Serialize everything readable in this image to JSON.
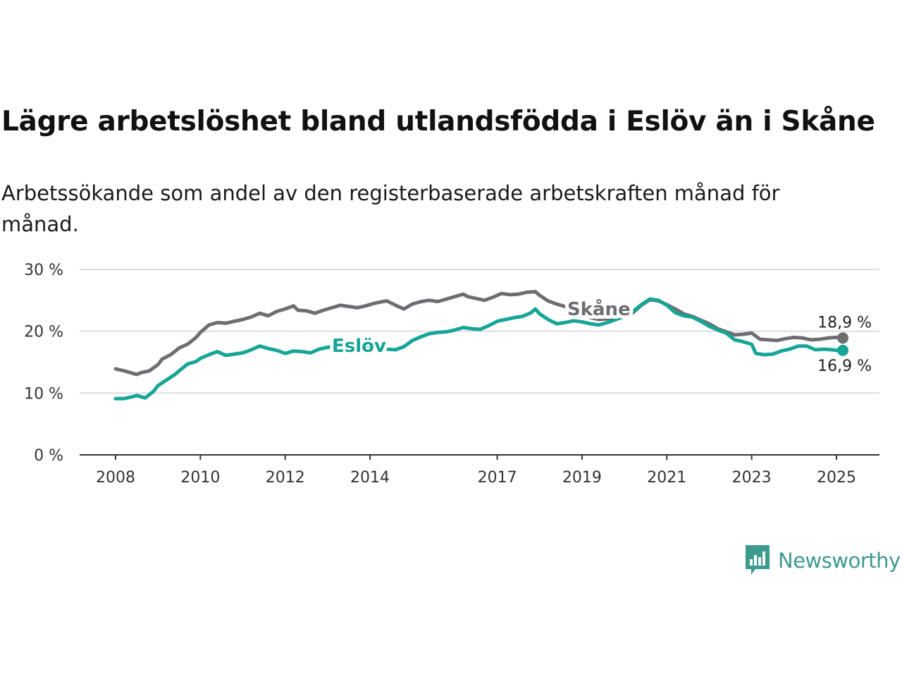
{
  "chart_data": {
    "type": "line",
    "title": "Lägre arbetslöshet bland utlandsfödda i Eslöv än i Skåne",
    "subtitle": "Arbetssökande som andel av den registerbaserade arbetskraften månad för månad.",
    "xlabel": "",
    "ylabel": "",
    "xlim": [
      2008,
      2025.2
    ],
    "ylim": [
      0,
      30
    ],
    "y_ticks": [
      0,
      10,
      20,
      30
    ],
    "y_tick_labels": [
      "0 %",
      "10 %",
      "20 %",
      "30 %"
    ],
    "x_ticks": [
      2008,
      2010,
      2012,
      2014,
      2017,
      2019,
      2021,
      2023,
      2025
    ],
    "x_tick_labels": [
      "2008",
      "2010",
      "2012",
      "2014",
      "2017",
      "2019",
      "2021",
      "2023",
      "2025"
    ],
    "grid": true,
    "legend": "direct labels on lines",
    "series": [
      {
        "name": "Skåne",
        "color": "#6e6e72",
        "end_label": "18,9 %",
        "points": [
          [
            2008.0,
            13.9
          ],
          [
            2008.2,
            13.6
          ],
          [
            2008.4,
            13.2
          ],
          [
            2008.5,
            13.0
          ],
          [
            2008.6,
            13.3
          ],
          [
            2008.8,
            13.6
          ],
          [
            2009.0,
            14.6
          ],
          [
            2009.1,
            15.5
          ],
          [
            2009.3,
            16.2
          ],
          [
            2009.5,
            17.3
          ],
          [
            2009.7,
            17.9
          ],
          [
            2009.9,
            19.0
          ],
          [
            2010.0,
            19.8
          ],
          [
            2010.2,
            21.0
          ],
          [
            2010.4,
            21.4
          ],
          [
            2010.6,
            21.3
          ],
          [
            2010.8,
            21.6
          ],
          [
            2011.0,
            21.9
          ],
          [
            2011.2,
            22.3
          ],
          [
            2011.4,
            22.9
          ],
          [
            2011.6,
            22.5
          ],
          [
            2011.8,
            23.2
          ],
          [
            2012.0,
            23.6
          ],
          [
            2012.2,
            24.1
          ],
          [
            2012.3,
            23.4
          ],
          [
            2012.5,
            23.3
          ],
          [
            2012.7,
            22.9
          ],
          [
            2012.9,
            23.4
          ],
          [
            2013.1,
            23.8
          ],
          [
            2013.3,
            24.2
          ],
          [
            2013.5,
            24.0
          ],
          [
            2013.7,
            23.8
          ],
          [
            2013.9,
            24.1
          ],
          [
            2014.1,
            24.5
          ],
          [
            2014.3,
            24.8
          ],
          [
            2014.4,
            24.9
          ],
          [
            2014.6,
            24.2
          ],
          [
            2014.8,
            23.6
          ],
          [
            2015.0,
            24.4
          ],
          [
            2015.2,
            24.8
          ],
          [
            2015.4,
            25.0
          ],
          [
            2015.6,
            24.8
          ],
          [
            2015.8,
            25.2
          ],
          [
            2016.0,
            25.6
          ],
          [
            2016.2,
            26.0
          ],
          [
            2016.3,
            25.6
          ],
          [
            2016.5,
            25.3
          ],
          [
            2016.7,
            25.0
          ],
          [
            2016.9,
            25.5
          ],
          [
            2017.1,
            26.1
          ],
          [
            2017.3,
            25.9
          ],
          [
            2017.5,
            26.0
          ],
          [
            2017.7,
            26.3
          ],
          [
            2017.9,
            26.4
          ],
          [
            2018.0,
            25.8
          ],
          [
            2018.2,
            24.9
          ],
          [
            2018.4,
            24.4
          ],
          [
            2018.6,
            24.0
          ],
          [
            2018.8,
            23.4
          ],
          [
            2019.0,
            22.6
          ],
          [
            2019.2,
            22.2
          ],
          [
            2019.4,
            21.9
          ],
          [
            2019.6,
            22.0
          ],
          [
            2019.8,
            22.3
          ],
          [
            2020.0,
            22.8
          ],
          [
            2020.2,
            23.0
          ],
          [
            2020.4,
            24.2
          ],
          [
            2020.6,
            25.1
          ],
          [
            2020.8,
            24.9
          ],
          [
            2021.0,
            24.3
          ],
          [
            2021.2,
            23.6
          ],
          [
            2021.4,
            22.8
          ],
          [
            2021.6,
            22.4
          ],
          [
            2021.8,
            21.8
          ],
          [
            2022.0,
            21.2
          ],
          [
            2022.2,
            20.4
          ],
          [
            2022.4,
            19.9
          ],
          [
            2022.6,
            19.4
          ],
          [
            2022.8,
            19.5
          ],
          [
            2023.0,
            19.7
          ],
          [
            2023.2,
            18.7
          ],
          [
            2023.4,
            18.6
          ],
          [
            2023.6,
            18.5
          ],
          [
            2023.8,
            18.8
          ],
          [
            2024.0,
            19.0
          ],
          [
            2024.2,
            18.9
          ],
          [
            2024.4,
            18.6
          ],
          [
            2024.6,
            18.7
          ],
          [
            2024.8,
            18.9
          ],
          [
            2025.0,
            19.0
          ],
          [
            2025.15,
            18.9
          ]
        ]
      },
      {
        "name": "Eslöv",
        "color": "#16a596",
        "end_label": "16,9 %",
        "points": [
          [
            2008.0,
            9.1
          ],
          [
            2008.2,
            9.1
          ],
          [
            2008.4,
            9.4
          ],
          [
            2008.5,
            9.6
          ],
          [
            2008.7,
            9.2
          ],
          [
            2008.9,
            10.3
          ],
          [
            2009.0,
            11.2
          ],
          [
            2009.2,
            12.1
          ],
          [
            2009.4,
            13.0
          ],
          [
            2009.5,
            13.6
          ],
          [
            2009.7,
            14.7
          ],
          [
            2009.9,
            15.1
          ],
          [
            2010.0,
            15.6
          ],
          [
            2010.2,
            16.2
          ],
          [
            2010.4,
            16.7
          ],
          [
            2010.6,
            16.1
          ],
          [
            2010.8,
            16.3
          ],
          [
            2011.0,
            16.5
          ],
          [
            2011.2,
            17.0
          ],
          [
            2011.4,
            17.6
          ],
          [
            2011.6,
            17.2
          ],
          [
            2011.8,
            16.9
          ],
          [
            2012.0,
            16.4
          ],
          [
            2012.2,
            16.8
          ],
          [
            2012.4,
            16.7
          ],
          [
            2012.6,
            16.5
          ],
          [
            2012.8,
            17.1
          ],
          [
            2013.0,
            17.4
          ],
          [
            2013.2,
            17.6
          ],
          [
            2013.4,
            18.0
          ],
          [
            2013.6,
            18.3
          ],
          [
            2013.8,
            18.0
          ],
          [
            2014.0,
            17.6
          ],
          [
            2014.2,
            17.3
          ],
          [
            2014.4,
            17.1
          ],
          [
            2014.6,
            17.0
          ],
          [
            2014.8,
            17.5
          ],
          [
            2015.0,
            18.5
          ],
          [
            2015.2,
            19.1
          ],
          [
            2015.4,
            19.6
          ],
          [
            2015.6,
            19.8
          ],
          [
            2015.8,
            19.9
          ],
          [
            2016.0,
            20.2
          ],
          [
            2016.2,
            20.6
          ],
          [
            2016.4,
            20.4
          ],
          [
            2016.6,
            20.3
          ],
          [
            2016.8,
            20.9
          ],
          [
            2017.0,
            21.6
          ],
          [
            2017.2,
            21.9
          ],
          [
            2017.4,
            22.2
          ],
          [
            2017.6,
            22.4
          ],
          [
            2017.8,
            23.0
          ],
          [
            2017.9,
            23.6
          ],
          [
            2018.0,
            22.8
          ],
          [
            2018.2,
            21.9
          ],
          [
            2018.4,
            21.2
          ],
          [
            2018.6,
            21.4
          ],
          [
            2018.8,
            21.7
          ],
          [
            2019.0,
            21.5
          ],
          [
            2019.2,
            21.2
          ],
          [
            2019.4,
            21.0
          ],
          [
            2019.6,
            21.4
          ],
          [
            2019.8,
            21.9
          ],
          [
            2020.0,
            22.4
          ],
          [
            2020.2,
            23.2
          ],
          [
            2020.4,
            24.3
          ],
          [
            2020.6,
            25.2
          ],
          [
            2020.8,
            25.0
          ],
          [
            2021.0,
            24.2
          ],
          [
            2021.2,
            23.0
          ],
          [
            2021.4,
            22.5
          ],
          [
            2021.6,
            22.3
          ],
          [
            2021.8,
            21.6
          ],
          [
            2022.0,
            20.8
          ],
          [
            2022.2,
            20.2
          ],
          [
            2022.4,
            19.7
          ],
          [
            2022.6,
            18.6
          ],
          [
            2022.8,
            18.3
          ],
          [
            2023.0,
            17.9
          ],
          [
            2023.1,
            16.4
          ],
          [
            2023.3,
            16.2
          ],
          [
            2023.5,
            16.3
          ],
          [
            2023.7,
            16.8
          ],
          [
            2023.9,
            17.1
          ],
          [
            2024.1,
            17.6
          ],
          [
            2024.3,
            17.6
          ],
          [
            2024.5,
            17.0
          ],
          [
            2024.7,
            17.1
          ],
          [
            2024.9,
            17.0
          ],
          [
            2025.0,
            16.9
          ],
          [
            2025.15,
            16.9
          ]
        ]
      }
    ]
  },
  "brand": {
    "name": "Newsworthy",
    "color": "#3c9a8e"
  }
}
